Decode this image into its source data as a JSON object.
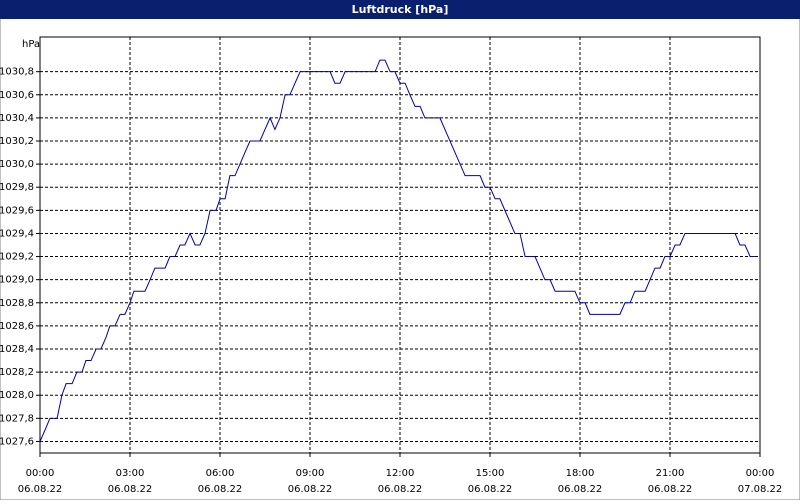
{
  "window_title": "Luftdruck [hPa]",
  "chart_data": {
    "type": "line",
    "y_label": "hPa",
    "x": [
      0,
      0.17,
      0.33,
      0.57,
      0.73,
      0.87,
      1.07,
      1.23,
      1.4,
      1.53,
      1.7,
      1.87,
      2.03,
      2.2,
      2.33,
      2.5,
      2.67,
      2.83,
      3.0,
      3.13,
      3.5,
      3.67,
      3.83,
      4.17,
      4.33,
      4.5,
      4.67,
      4.83,
      5.0,
      5.17,
      5.33,
      5.5,
      5.67,
      5.87,
      6.0,
      6.17,
      6.33,
      6.5,
      6.83,
      7.0,
      7.33,
      7.5,
      7.67,
      7.83,
      8.0,
      8.17,
      8.33,
      8.5,
      8.67,
      9.67,
      9.83,
      10.0,
      10.17,
      11.17,
      11.33,
      11.5,
      11.67,
      11.83,
      12.0,
      12.17,
      12.33,
      12.5,
      12.67,
      12.83,
      13.33,
      14.17,
      14.67,
      14.83,
      15.0,
      15.17,
      15.33,
      15.83,
      16.0,
      16.17,
      16.5,
      16.83,
      17.0,
      17.17,
      17.83,
      18.0,
      18.17,
      18.33,
      19.33,
      19.5,
      19.67,
      19.83,
      20.17,
      20.5,
      20.67,
      20.83,
      21.0,
      21.17,
      21.33,
      21.5,
      23.17,
      23.33,
      23.5,
      23.67,
      23.83
    ],
    "series": [
      {
        "name": "Luftdruck",
        "color": "#0000a8",
        "values": [
          1027.6,
          1027.7,
          1027.8,
          1027.8,
          1028.0,
          1028.1,
          1028.1,
          1028.2,
          1028.2,
          1028.3,
          1028.3,
          1028.4,
          1028.4,
          1028.5,
          1028.6,
          1028.6,
          1028.7,
          1028.7,
          1028.8,
          1028.9,
          1028.9,
          1029.0,
          1029.1,
          1029.1,
          1029.2,
          1029.2,
          1029.3,
          1029.3,
          1029.4,
          1029.3,
          1029.3,
          1029.4,
          1029.6,
          1029.6,
          1029.7,
          1029.7,
          1029.9,
          1029.9,
          1030.1,
          1030.2,
          1030.2,
          1030.3,
          1030.4,
          1030.3,
          1030.4,
          1030.6,
          1030.6,
          1030.7,
          1030.8,
          1030.8,
          1030.7,
          1030.7,
          1030.8,
          1030.8,
          1030.9,
          1030.9,
          1030.8,
          1030.8,
          1030.7,
          1030.7,
          1030.6,
          1030.5,
          1030.5,
          1030.4,
          1030.4,
          1029.9,
          1029.9,
          1029.8,
          1029.8,
          1029.7,
          1029.7,
          1029.4,
          1029.4,
          1029.2,
          1029.2,
          1029.0,
          1029.0,
          1028.9,
          1028.9,
          1028.8,
          1028.8,
          1028.7,
          1028.7,
          1028.8,
          1028.8,
          1028.9,
          1028.9,
          1029.1,
          1029.1,
          1029.2,
          1029.2,
          1029.3,
          1029.3,
          1029.4,
          1029.4,
          1029.3,
          1029.3,
          1029.2,
          1029.2
        ]
      }
    ],
    "xlim": [
      0,
      24
    ],
    "xticks": [
      {
        "value": 0,
        "label": "00:00"
      },
      {
        "value": 3,
        "label": "03:00"
      },
      {
        "value": 6,
        "label": "06:00"
      },
      {
        "value": 9,
        "label": "09:00"
      },
      {
        "value": 12,
        "label": "12:00"
      },
      {
        "value": 15,
        "label": "15:00"
      },
      {
        "value": 18,
        "label": "18:00"
      },
      {
        "value": 21,
        "label": "21:00"
      },
      {
        "value": 24,
        "label": "00:00"
      }
    ],
    "xtick_dates": [
      "06.08.22",
      "06.08.22",
      "06.08.22",
      "06.08.22",
      "06.08.22",
      "06.08.22",
      "06.08.22",
      "06.08.22",
      "07.08.22"
    ],
    "ylim": [
      1027.5,
      1031.1
    ],
    "yticks": [
      {
        "value": 1027.6,
        "label": "1027,6"
      },
      {
        "value": 1027.8,
        "label": "1027,8"
      },
      {
        "value": 1028.0,
        "label": "1028,0"
      },
      {
        "value": 1028.2,
        "label": "1028,2"
      },
      {
        "value": 1028.4,
        "label": "1028,4"
      },
      {
        "value": 1028.6,
        "label": "1028,6"
      },
      {
        "value": 1028.8,
        "label": "1028,8"
      },
      {
        "value": 1029.0,
        "label": "1029,0"
      },
      {
        "value": 1029.2,
        "label": "1029,2"
      },
      {
        "value": 1029.4,
        "label": "1029,4"
      },
      {
        "value": 1029.6,
        "label": "1029,6"
      },
      {
        "value": 1029.8,
        "label": "1029,8"
      },
      {
        "value": 1030.0,
        "label": "1030,0"
      },
      {
        "value": 1030.2,
        "label": "1030,2"
      },
      {
        "value": 1030.4,
        "label": "1030,4"
      },
      {
        "value": 1030.6,
        "label": "1030,6"
      },
      {
        "value": 1030.8,
        "label": "1030,8"
      }
    ],
    "grid": true
  }
}
